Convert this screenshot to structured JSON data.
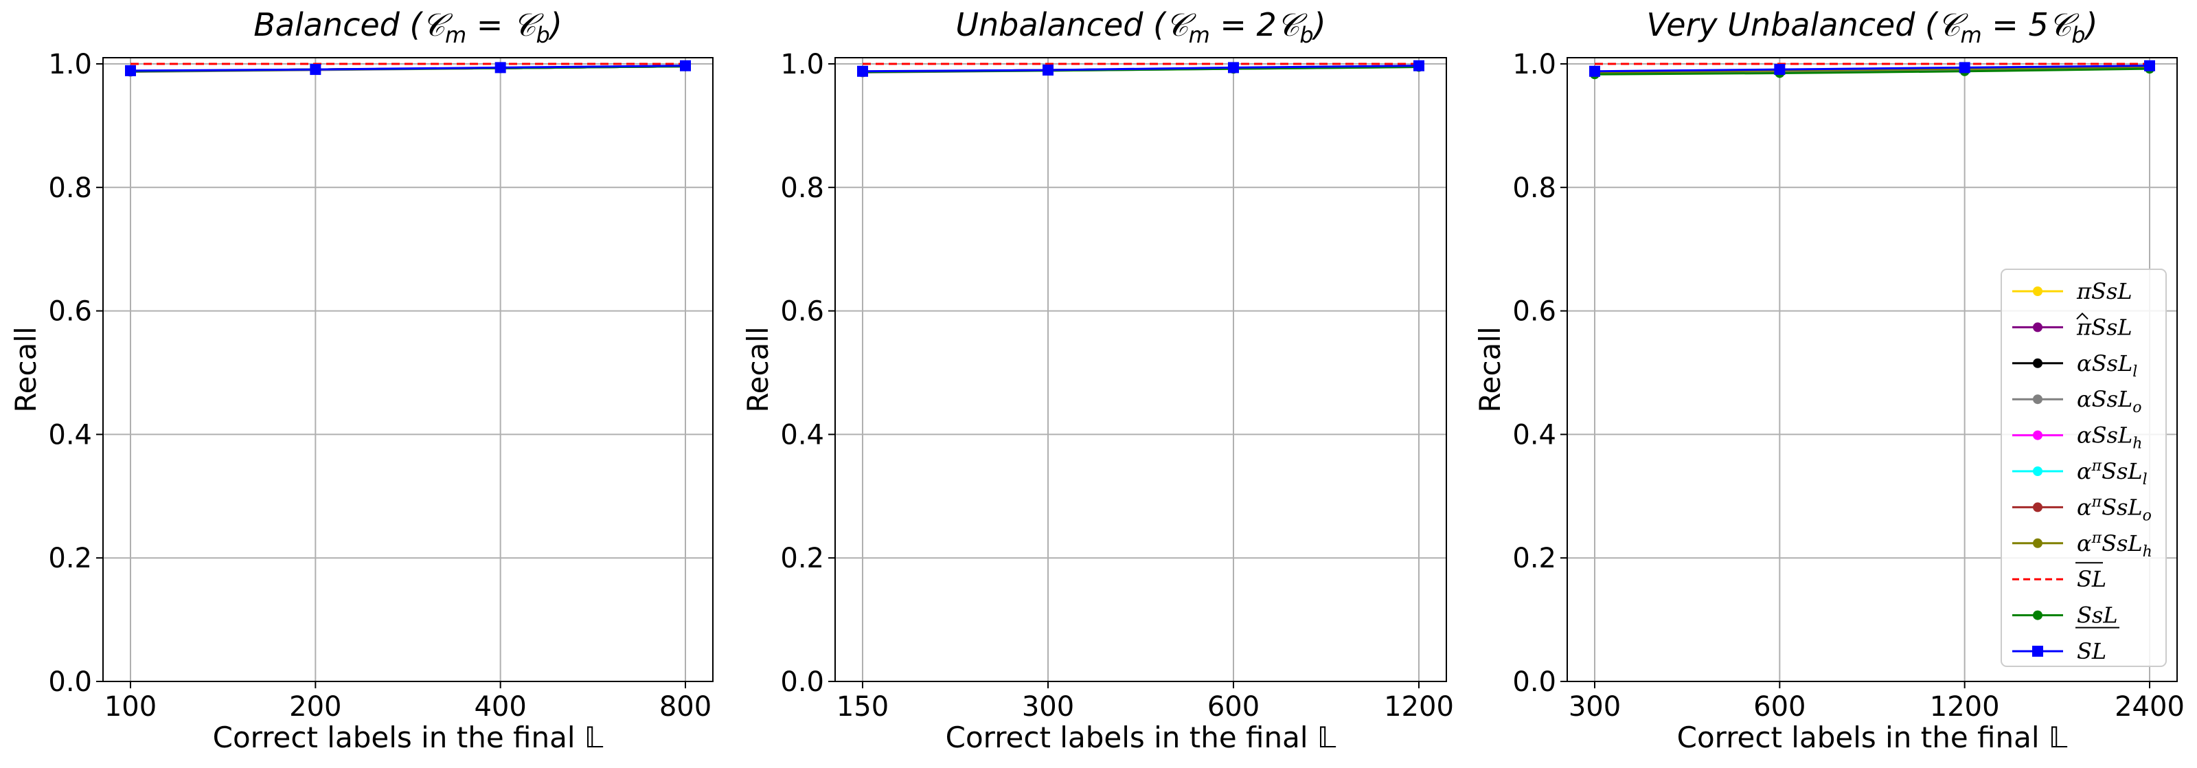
{
  "chart_data": [
    {
      "type": "line",
      "title": "Balanced  (𝒞m = 𝒞b)",
      "xlabel": "Correct labels in the final 𝕃",
      "ylabel": "Recall",
      "x_ticks": [
        "100",
        "200",
        "400",
        "800"
      ],
      "y_ticks": [
        "0.0",
        "0.2",
        "0.4",
        "0.6",
        "0.8",
        "1.0"
      ],
      "ylim": [
        0,
        1.01
      ],
      "grid": true,
      "reference_line": {
        "name": "SL̄ (overline)",
        "value": 1.0,
        "style": "dashed",
        "color": "#ff0000"
      },
      "series": [
        {
          "name": "πSsL",
          "color": "#ffd700",
          "marker": "circle",
          "values": [
            0.988,
            0.991,
            0.993,
            0.996
          ]
        },
        {
          "name": "π̂SsL",
          "color": "#800080",
          "marker": "circle",
          "values": [
            0.988,
            0.991,
            0.993,
            0.996
          ]
        },
        {
          "name": "αSsLl",
          "color": "#000000",
          "marker": "circle",
          "values": [
            0.988,
            0.991,
            0.993,
            0.996
          ]
        },
        {
          "name": "αSsLo",
          "color": "#808080",
          "marker": "circle",
          "values": [
            0.987,
            0.99,
            0.993,
            0.996
          ]
        },
        {
          "name": "αSsLh",
          "color": "#ff00ff",
          "marker": "circle",
          "values": [
            0.988,
            0.991,
            0.993,
            0.996
          ]
        },
        {
          "name": "απSsLl",
          "color": "#00ffff",
          "marker": "circle",
          "values": [
            0.988,
            0.991,
            0.993,
            0.996
          ]
        },
        {
          "name": "απSsLo",
          "color": "#a52a2a",
          "marker": "circle",
          "values": [
            0.988,
            0.991,
            0.993,
            0.996
          ]
        },
        {
          "name": "απSsLh",
          "color": "#808000",
          "marker": "circle",
          "values": [
            0.988,
            0.991,
            0.993,
            0.996
          ]
        },
        {
          "name": "SsL (underline)",
          "color": "#008000",
          "marker": "circle",
          "values": [
            0.988,
            0.991,
            0.993,
            0.996
          ]
        },
        {
          "name": "SL",
          "color": "#0000ff",
          "marker": "square",
          "values": [
            0.989,
            0.991,
            0.994,
            0.997
          ]
        }
      ]
    },
    {
      "type": "line",
      "title": "Unbalanced  (𝒞m = 2𝒞b)",
      "xlabel": "Correct labels in the final 𝕃",
      "ylabel": "Recall",
      "x_ticks": [
        "150",
        "300",
        "600",
        "1200"
      ],
      "y_ticks": [
        "0.0",
        "0.2",
        "0.4",
        "0.6",
        "0.8",
        "1.0"
      ],
      "ylim": [
        0,
        1.01
      ],
      "grid": true,
      "reference_line": {
        "name": "SL̄ (overline)",
        "value": 1.0,
        "style": "dashed",
        "color": "#ff0000"
      },
      "series": [
        {
          "name": "πSsL",
          "color": "#ffd700",
          "marker": "circle",
          "values": [
            0.987,
            0.99,
            0.993,
            0.996
          ]
        },
        {
          "name": "π̂SsL",
          "color": "#800080",
          "marker": "circle",
          "values": [
            0.987,
            0.99,
            0.993,
            0.996
          ]
        },
        {
          "name": "αSsLl",
          "color": "#000000",
          "marker": "circle",
          "values": [
            0.987,
            0.99,
            0.993,
            0.996
          ]
        },
        {
          "name": "αSsLo",
          "color": "#808080",
          "marker": "circle",
          "values": [
            0.986,
            0.989,
            0.992,
            0.995
          ]
        },
        {
          "name": "αSsLh",
          "color": "#ff00ff",
          "marker": "circle",
          "values": [
            0.987,
            0.99,
            0.993,
            0.996
          ]
        },
        {
          "name": "απSsLl",
          "color": "#00ffff",
          "marker": "circle",
          "values": [
            0.987,
            0.99,
            0.993,
            0.996
          ]
        },
        {
          "name": "απSsLo",
          "color": "#a52a2a",
          "marker": "circle",
          "values": [
            0.987,
            0.99,
            0.993,
            0.996
          ]
        },
        {
          "name": "απSsLh",
          "color": "#808000",
          "marker": "circle",
          "values": [
            0.987,
            0.99,
            0.993,
            0.996
          ]
        },
        {
          "name": "SsL (underline)",
          "color": "#008000",
          "marker": "circle",
          "values": [
            0.987,
            0.989,
            0.992,
            0.995
          ]
        },
        {
          "name": "SL",
          "color": "#0000ff",
          "marker": "square",
          "values": [
            0.988,
            0.99,
            0.994,
            0.997
          ]
        }
      ]
    },
    {
      "type": "line",
      "title": "Very  Unbalanced  (𝒞m = 5𝒞b)",
      "xlabel": "Correct labels in the final 𝕃",
      "ylabel": "Recall",
      "x_ticks": [
        "300",
        "600",
        "1200",
        "2400"
      ],
      "y_ticks": [
        "0.0",
        "0.2",
        "0.4",
        "0.6",
        "0.8",
        "1.0"
      ],
      "ylim": [
        0,
        1.01
      ],
      "grid": true,
      "legend": "lower-right",
      "reference_line": {
        "name": "SL̄ (overline)",
        "value": 1.0,
        "style": "dashed",
        "color": "#ff0000"
      },
      "series": [
        {
          "name": "πSsL",
          "color": "#ffd700",
          "marker": "circle",
          "values": [
            0.986,
            0.989,
            0.992,
            0.995
          ]
        },
        {
          "name": "π̂SsL",
          "color": "#800080",
          "marker": "circle",
          "values": [
            0.986,
            0.989,
            0.992,
            0.995
          ]
        },
        {
          "name": "αSsLl",
          "color": "#000000",
          "marker": "circle",
          "values": [
            0.987,
            0.99,
            0.993,
            0.996
          ]
        },
        {
          "name": "αSsLo",
          "color": "#808080",
          "marker": "circle",
          "values": [
            0.984,
            0.986,
            0.989,
            0.993
          ]
        },
        {
          "name": "αSsLh",
          "color": "#ff00ff",
          "marker": "circle",
          "values": [
            0.986,
            0.989,
            0.992,
            0.995
          ]
        },
        {
          "name": "απSsLl",
          "color": "#00ffff",
          "marker": "circle",
          "values": [
            0.986,
            0.989,
            0.992,
            0.995
          ]
        },
        {
          "name": "απSsLo",
          "color": "#a52a2a",
          "marker": "circle",
          "values": [
            0.987,
            0.99,
            0.993,
            0.996
          ]
        },
        {
          "name": "απSsLh",
          "color": "#808000",
          "marker": "circle",
          "values": [
            0.986,
            0.989,
            0.992,
            0.995
          ]
        },
        {
          "name": "SsL (underline)",
          "color": "#008000",
          "marker": "circle",
          "values": [
            0.983,
            0.985,
            0.988,
            0.992
          ]
        },
        {
          "name": "SL",
          "color": "#0000ff",
          "marker": "square",
          "values": [
            0.988,
            0.991,
            0.994,
            0.997
          ]
        }
      ]
    }
  ]
}
